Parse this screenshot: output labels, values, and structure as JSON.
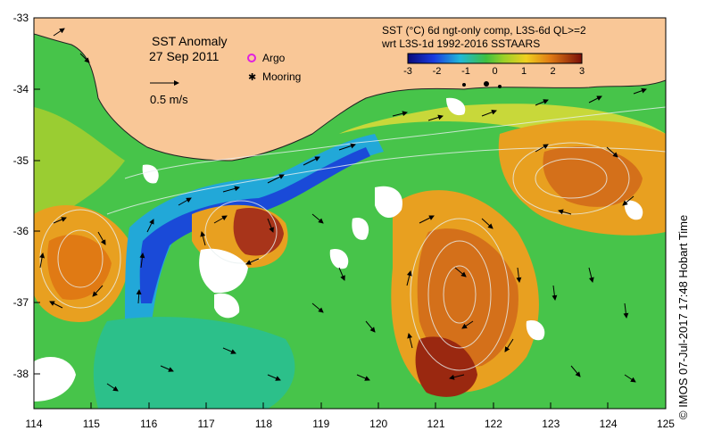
{
  "map": {
    "title": "SST Anomaly",
    "date": "27 Sep 2011",
    "scale_label": "0.5 m/s",
    "legend": {
      "argo": "Argo",
      "mooring": "Mooring"
    },
    "colorbar": {
      "title_line1": "SST (°C) 6d ngt-only comp, L3S-6d QL>=2",
      "title_line2": "wrt L3S-1d 1992-2016 SSTAARS",
      "ticks": [
        "-3",
        "-2",
        "-1",
        "0",
        "1",
        "2",
        "3"
      ],
      "tick_values": [
        -3,
        -2,
        -1,
        0,
        1,
        2,
        3
      ]
    },
    "lon_ticks": [
      "114",
      "115",
      "116",
      "117",
      "118",
      "119",
      "120",
      "121",
      "122",
      "123",
      "124",
      "125"
    ],
    "lat_ticks": [
      "-33",
      "-34",
      "-35",
      "-36",
      "-37",
      "-38"
    ],
    "credit": "© IMOS 07-Jul-2017 17:48 Hobart Time",
    "colors": {
      "land": "#f9c797",
      "cold": "#1a3bd0",
      "neutral": "#3fbf3f",
      "warm": "#e07a14",
      "hot": "#8a1a0a"
    }
  }
}
